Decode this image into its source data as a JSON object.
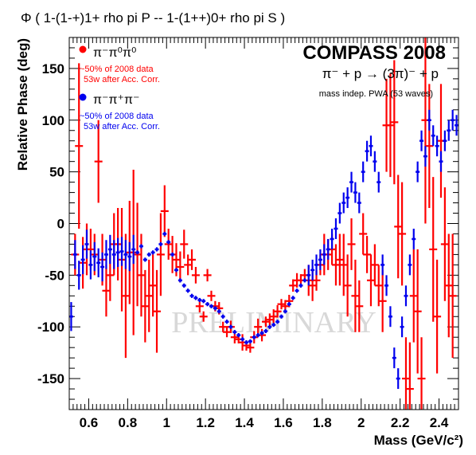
{
  "chart_data": {
    "type": "scatter",
    "title": "Φ ( 1-(1-+)1+ rho pi P  --  1-(1++)0+ rho pi S )",
    "xlabel": "Mass (GeV/c²)",
    "ylabel": "Relative Phase (deg)",
    "xlim": [
      0.5,
      2.5
    ],
    "ylim": [
      -180,
      180
    ],
    "x_ticks": [
      "0.6",
      "0.8",
      "1",
      "1.2",
      "1.4",
      "1.6",
      "1.8",
      "2",
      "2.2",
      "2.4"
    ],
    "y_ticks": [
      "150",
      "100",
      "50",
      "0",
      "-50",
      "-100",
      "-150"
    ],
    "experiment_title": "COMPASS 2008",
    "reaction": "π⁻ + p → (3π)⁻ + p",
    "analysis_note": "mass indep. PWA (53 waves)",
    "watermark": "PRELIMINARY",
    "legend_position": "top-left",
    "series": [
      {
        "name": "π⁻π⁰π⁰",
        "sublabel_1": "~50% of 2008 data",
        "sublabel_2": "53w after Acc. Corr.",
        "color": "#ff0000",
        "x": [
          0.53,
          0.55,
          0.57,
          0.59,
          0.61,
          0.63,
          0.65,
          0.67,
          0.69,
          0.71,
          0.73,
          0.75,
          0.77,
          0.79,
          0.81,
          0.83,
          0.85,
          0.87,
          0.89,
          0.91,
          0.93,
          0.95,
          0.97,
          0.99,
          1.01,
          1.03,
          1.05,
          1.07,
          1.09,
          1.11,
          1.13,
          1.15,
          1.17,
          1.19,
          1.21,
          1.23,
          1.25,
          1.27,
          1.29,
          1.31,
          1.33,
          1.35,
          1.37,
          1.39,
          1.41,
          1.43,
          1.45,
          1.47,
          1.49,
          1.51,
          1.53,
          1.55,
          1.57,
          1.59,
          1.61,
          1.63,
          1.65,
          1.67,
          1.69,
          1.71,
          1.73,
          1.75,
          1.77,
          1.79,
          1.81,
          1.83,
          1.85,
          1.87,
          1.89,
          1.91,
          1.93,
          1.95,
          1.97,
          1.99,
          2.01,
          2.03,
          2.05,
          2.07,
          2.09,
          2.11,
          2.13,
          2.15,
          2.17,
          2.19,
          2.21,
          2.23,
          2.25,
          2.27,
          2.29,
          2.31,
          2.33,
          2.35,
          2.37,
          2.39,
          2.41,
          2.43,
          2.45,
          2.47
        ],
        "y": [
          -30,
          75,
          -38,
          -25,
          -25,
          -30,
          60,
          -35,
          -65,
          -50,
          -20,
          -20,
          -35,
          -70,
          -28,
          -28,
          -30,
          -50,
          -80,
          -70,
          -60,
          -85,
          -30,
          12,
          -20,
          -30,
          -35,
          -42,
          -20,
          -40,
          -35,
          -50,
          -80,
          -90,
          -50,
          -70,
          -80,
          -82,
          -100,
          -105,
          -100,
          -110,
          -112,
          -115,
          -118,
          -120,
          -110,
          -100,
          -108,
          -95,
          -93,
          -90,
          -85,
          -78,
          -80,
          -75,
          -60,
          -55,
          -55,
          -50,
          -55,
          -60,
          -55,
          -40,
          -30,
          -30,
          -25,
          -40,
          -35,
          -40,
          -60,
          -20,
          -70,
          -80,
          -10,
          -30,
          -55,
          -40,
          -60,
          -75,
          95,
          95,
          98,
          -3,
          -10,
          -150,
          -160,
          -70,
          -85,
          -150,
          100,
          75,
          -25,
          -90,
          80,
          -20,
          -60,
          -70
        ],
        "err": [
          20,
          80,
          25,
          25,
          20,
          20,
          40,
          25,
          25,
          25,
          30,
          35,
          50,
          60,
          50,
          80,
          50,
          40,
          35,
          35,
          30,
          40,
          40,
          25,
          15,
          18,
          16,
          15,
          14,
          10,
          10,
          8,
          6,
          5,
          6,
          5,
          5,
          6,
          5,
          5,
          6,
          6,
          4,
          8,
          5,
          5,
          6,
          8,
          6,
          5,
          6,
          7,
          6,
          5,
          6,
          6,
          6,
          7,
          6,
          6,
          15,
          15,
          10,
          10,
          20,
          15,
          15,
          20,
          25,
          30,
          30,
          25,
          35,
          25,
          20,
          18,
          25,
          20,
          20,
          30,
          45,
          50,
          60,
          50,
          50,
          40,
          45,
          45,
          60,
          40,
          100,
          60,
          70,
          55,
          55,
          55,
          50,
          60
        ]
      },
      {
        "name": "π⁻π⁺π⁻",
        "sublabel_1": "~50% of 2008 data",
        "sublabel_2": "53w after Acc. Corr.",
        "color": "#0000ee",
        "x": [
          0.51,
          0.53,
          0.55,
          0.57,
          0.59,
          0.61,
          0.63,
          0.65,
          0.67,
          0.69,
          0.71,
          0.73,
          0.75,
          0.77,
          0.79,
          0.81,
          0.83,
          0.85,
          0.87,
          0.89,
          0.91,
          0.93,
          0.95,
          0.97,
          0.99,
          1.01,
          1.03,
          1.05,
          1.07,
          1.09,
          1.11,
          1.13,
          1.15,
          1.17,
          1.19,
          1.21,
          1.23,
          1.25,
          1.27,
          1.29,
          1.31,
          1.33,
          1.35,
          1.37,
          1.39,
          1.41,
          1.43,
          1.45,
          1.47,
          1.49,
          1.51,
          1.53,
          1.55,
          1.57,
          1.59,
          1.61,
          1.63,
          1.65,
          1.67,
          1.69,
          1.71,
          1.73,
          1.75,
          1.77,
          1.79,
          1.81,
          1.83,
          1.85,
          1.87,
          1.89,
          1.91,
          1.93,
          1.95,
          1.97,
          1.99,
          2.01,
          2.03,
          2.05,
          2.07,
          2.09,
          2.11,
          2.13,
          2.15,
          2.17,
          2.19,
          2.21,
          2.23,
          2.25,
          2.27,
          2.29,
          2.31,
          2.33,
          2.35,
          2.37,
          2.39,
          2.41,
          2.43,
          2.45,
          2.47,
          2.49
        ],
        "y": [
          -90,
          -30,
          -50,
          -35,
          -20,
          -40,
          -32,
          -38,
          -42,
          -30,
          -25,
          -30,
          -28,
          -27,
          -30,
          -32,
          -25,
          -28,
          -22,
          -35,
          -30,
          -28,
          -25,
          -20,
          -10,
          -18,
          -30,
          -45,
          -55,
          -60,
          -65,
          -70,
          -72,
          -74,
          -75,
          -78,
          -80,
          -82,
          -85,
          -90,
          -95,
          -100,
          -105,
          -108,
          -112,
          -115,
          -114,
          -110,
          -108,
          -106,
          -104,
          -100,
          -98,
          -95,
          -90,
          -85,
          -78,
          -72,
          -65,
          -60,
          -55,
          -50,
          -45,
          -40,
          -35,
          -30,
          -25,
          -15,
          -5,
          10,
          20,
          25,
          40,
          30,
          20,
          50,
          70,
          75,
          60,
          40,
          -40,
          -60,
          -90,
          -130,
          -150,
          -100,
          -70,
          -40,
          -15,
          50,
          80,
          65,
          100,
          85,
          75,
          60,
          80,
          90,
          100,
          95
        ]
      }
    ]
  }
}
